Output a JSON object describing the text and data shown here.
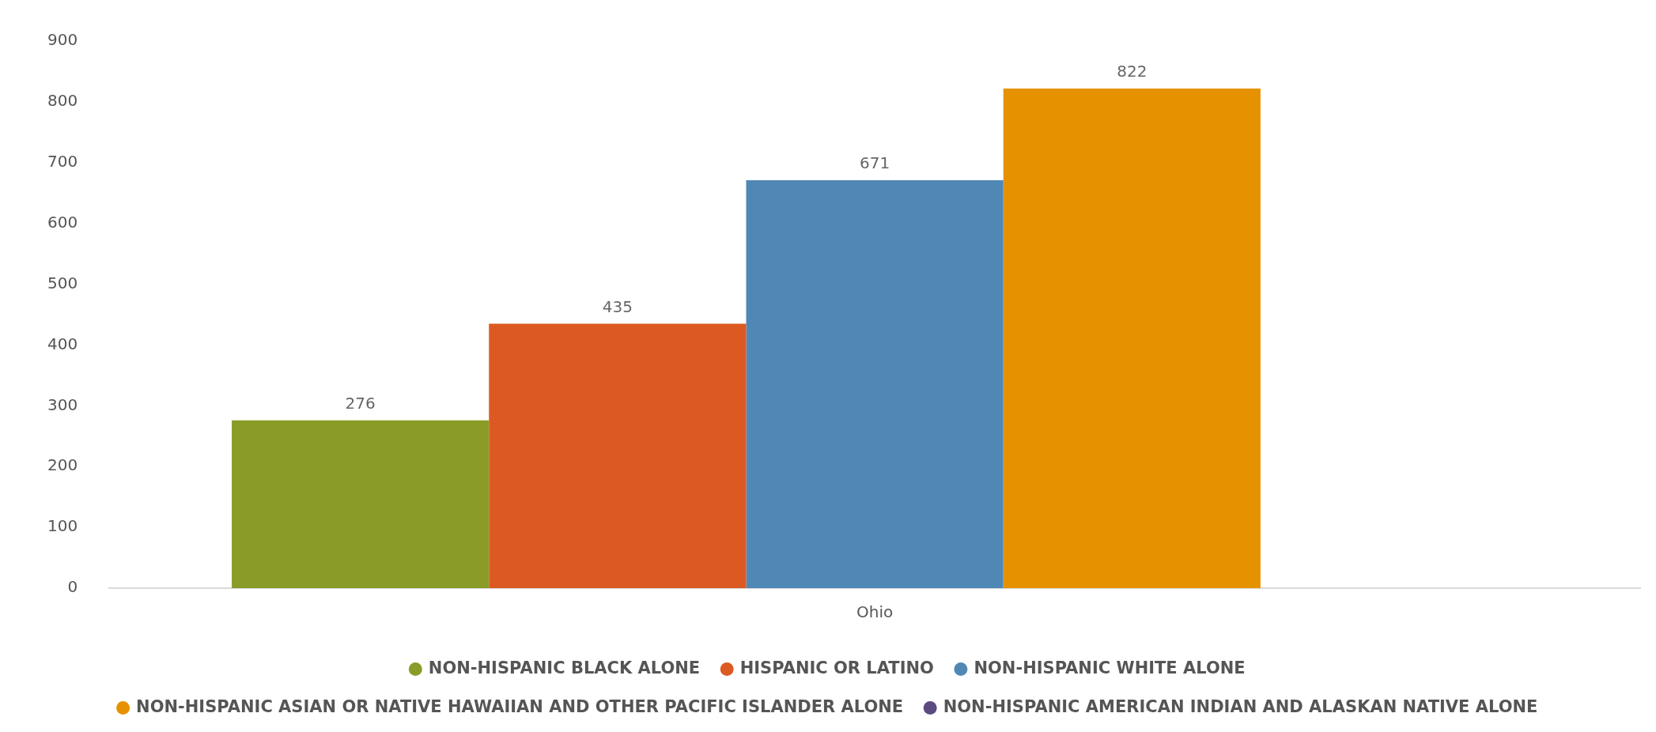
{
  "chart_data": {
    "type": "bar",
    "categories": [
      "Ohio"
    ],
    "series": [
      {
        "name": "NON-HISPANIC BLACK ALONE",
        "color": "#8a9c27",
        "values": [
          276
        ]
      },
      {
        "name": "HISPANIC OR LATINO",
        "color": "#dc5a21",
        "values": [
          435
        ]
      },
      {
        "name": "NON-HISPANIC WHITE ALONE",
        "color": "#5088b5",
        "values": [
          671
        ]
      },
      {
        "name": "NON-HISPANIC ASIAN OR NATIVE HAWAIIAN AND OTHER PACIFIC ISLANDER ALONE",
        "color": "#e69200",
        "values": [
          822
        ]
      },
      {
        "name": "NON-HISPANIC AMERICAN INDIAN AND ALASKAN NATIVE ALONE",
        "color": "#5b4a80",
        "values": [
          null
        ]
      }
    ],
    "ylim": [
      0,
      900
    ],
    "yticks": [
      0,
      100,
      200,
      300,
      400,
      500,
      600,
      700,
      800,
      900
    ],
    "grid": false,
    "legend": "bottom",
    "data_labels": true
  }
}
